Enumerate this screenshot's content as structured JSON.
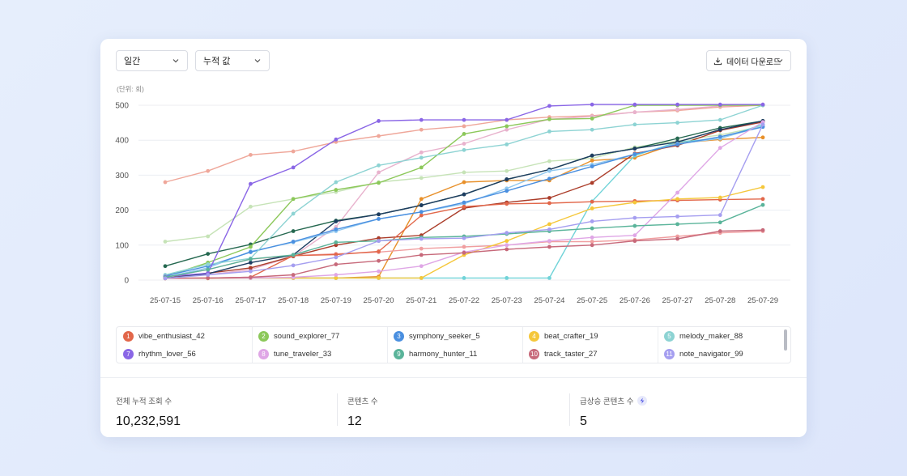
{
  "controls": {
    "period_label": "일간",
    "mode_label": "누적 값",
    "download_label": "데이터 다운로드"
  },
  "unit_label": "(단위: 회)",
  "stats": {
    "total_label": "전체 누적 조회 수",
    "total_value": "10,232,591",
    "content_label": "콘텐츠 수",
    "content_value": "12",
    "surge_label": "급상승 콘텐츠 수",
    "surge_value": "5"
  },
  "chart_data": {
    "type": "line",
    "title": "",
    "xlabel": "",
    "ylabel": "",
    "ylim": [
      0,
      500
    ],
    "yticks": [
      0,
      100,
      200,
      300,
      400,
      500
    ],
    "grid": true,
    "legend_position": "bottom",
    "x": [
      "25-07-15",
      "25-07-16",
      "25-07-17",
      "25-07-18",
      "25-07-19",
      "25-07-20",
      "25-07-21",
      "25-07-22",
      "25-07-23",
      "25-07-24",
      "25-07-25",
      "25-07-26",
      "25-07-27",
      "25-07-28",
      "25-07-29"
    ],
    "series": [
      {
        "num": "1",
        "name": "vibe_enthusiast_42",
        "color": "#e2674a",
        "legend": true,
        "values": [
          5,
          6,
          8,
          70,
          73,
          82,
          185,
          210,
          218,
          220,
          224,
          226,
          228,
          230,
          232
        ]
      },
      {
        "num": "2",
        "name": "sound_explorer_77",
        "color": "#8cc85a",
        "legend": true,
        "values": [
          10,
          50,
          95,
          232,
          258,
          278,
          322,
          418,
          440,
          460,
          462,
          500,
          500,
          500,
          500
        ]
      },
      {
        "num": "3",
        "name": "symphony_seeker_5",
        "color": "#4a8fe0",
        "legend": true,
        "values": [
          12,
          40,
          80,
          110,
          145,
          175,
          195,
          222,
          255,
          290,
          325,
          360,
          388,
          410,
          438
        ]
      },
      {
        "num": "4",
        "name": "beat_crafter_19",
        "color": "#f5c73a",
        "legend": true,
        "values": [
          5,
          6,
          6,
          6,
          6,
          6,
          6,
          72,
          112,
          160,
          205,
          222,
          232,
          236,
          266
        ]
      },
      {
        "num": "5",
        "name": "melody_maker_88",
        "color": "#8dd3d3",
        "legend": true,
        "values": [
          15,
          45,
          62,
          190,
          280,
          328,
          350,
          372,
          388,
          425,
          430,
          445,
          450,
          458,
          500
        ]
      },
      {
        "num": "7",
        "name": "rhythm_lover_56",
        "color": "#8a66e6",
        "legend": true,
        "values": [
          10,
          20,
          275,
          322,
          402,
          455,
          458,
          458,
          458,
          498,
          502,
          502,
          502,
          502,
          502
        ]
      },
      {
        "num": "8",
        "name": "tune_traveler_33",
        "color": "#dfa6e6",
        "legend": true,
        "values": [
          5,
          6,
          6,
          8,
          15,
          25,
          40,
          80,
          100,
          112,
          122,
          128,
          250,
          378,
          452
        ]
      },
      {
        "num": "9",
        "name": "harmony_hunter_11",
        "color": "#5ab49a",
        "legend": true,
        "values": [
          8,
          30,
          60,
          72,
          108,
          112,
          122,
          125,
          132,
          140,
          148,
          155,
          160,
          165,
          215
        ]
      },
      {
        "num": "10",
        "name": "track_taster_27",
        "color": "#c7697a",
        "legend": true,
        "values": [
          5,
          6,
          8,
          15,
          45,
          55,
          72,
          78,
          88,
          95,
          100,
          112,
          118,
          140,
          143
        ]
      },
      {
        "num": "11",
        "name": "note_navigator_99",
        "color": "#a59ef0",
        "legend": true,
        "values": [
          5,
          15,
          25,
          42,
          65,
          112,
          118,
          120,
          135,
          145,
          168,
          178,
          182,
          186,
          445
        ]
      },
      {
        "num": "",
        "name": "",
        "color": "#efa79a",
        "legend": false,
        "values": [
          280,
          312,
          358,
          368,
          395,
          412,
          430,
          440,
          458,
          466,
          470,
          480,
          485,
          495,
          500
        ]
      },
      {
        "num": "",
        "name": "",
        "color": "#c6e3b7",
        "legend": false,
        "values": [
          110,
          125,
          210,
          232,
          252,
          280,
          292,
          308,
          312,
          340,
          348,
          380,
          398,
          415,
          440
        ]
      },
      {
        "num": "",
        "name": "",
        "color": "#e8b2cd",
        "legend": false,
        "values": [
          8,
          15,
          30,
          68,
          152,
          308,
          365,
          390,
          430,
          460,
          468,
          480,
          488,
          498,
          502
        ]
      },
      {
        "num": "",
        "name": "",
        "color": "#256850",
        "legend": false,
        "values": [
          40,
          75,
          102,
          140,
          170,
          188,
          214,
          245,
          288,
          316,
          356,
          376,
          405,
          435,
          455
        ]
      },
      {
        "num": "",
        "name": "",
        "color": "#e8902a",
        "legend": false,
        "values": [
          5,
          5,
          6,
          6,
          6,
          10,
          232,
          280,
          285,
          285,
          342,
          350,
          392,
          402,
          408
        ]
      },
      {
        "num": "",
        "name": "",
        "color": "#ab3d2a",
        "legend": false,
        "values": [
          5,
          20,
          35,
          68,
          100,
          120,
          128,
          206,
          222,
          235,
          278,
          362,
          385,
          428,
          452
        ]
      },
      {
        "num": "",
        "name": "",
        "color": "#f09ea0",
        "legend": false,
        "values": [
          8,
          30,
          60,
          70,
          75,
          80,
          90,
          95,
          100,
          110,
          110,
          115,
          125,
          135,
          140
        ]
      },
      {
        "num": "",
        "name": "",
        "color": "#70d3d8",
        "legend": false,
        "values": [
          5,
          6,
          6,
          6,
          6,
          6,
          6,
          6,
          6,
          6,
          225,
          356,
          395,
          405,
          445
        ]
      },
      {
        "num": "",
        "name": "",
        "color": "#1d3c60",
        "legend": false,
        "values": [
          5,
          18,
          50,
          72,
          168,
          188,
          214,
          245,
          288,
          316,
          356,
          376,
          395,
          430,
          455
        ]
      },
      {
        "num": "",
        "name": "",
        "color": "#90c8f0",
        "legend": false,
        "values": [
          8,
          35,
          82,
          108,
          140,
          175,
          195,
          218,
          262,
          312,
          330,
          360,
          390,
          405,
          440
        ]
      }
    ]
  }
}
